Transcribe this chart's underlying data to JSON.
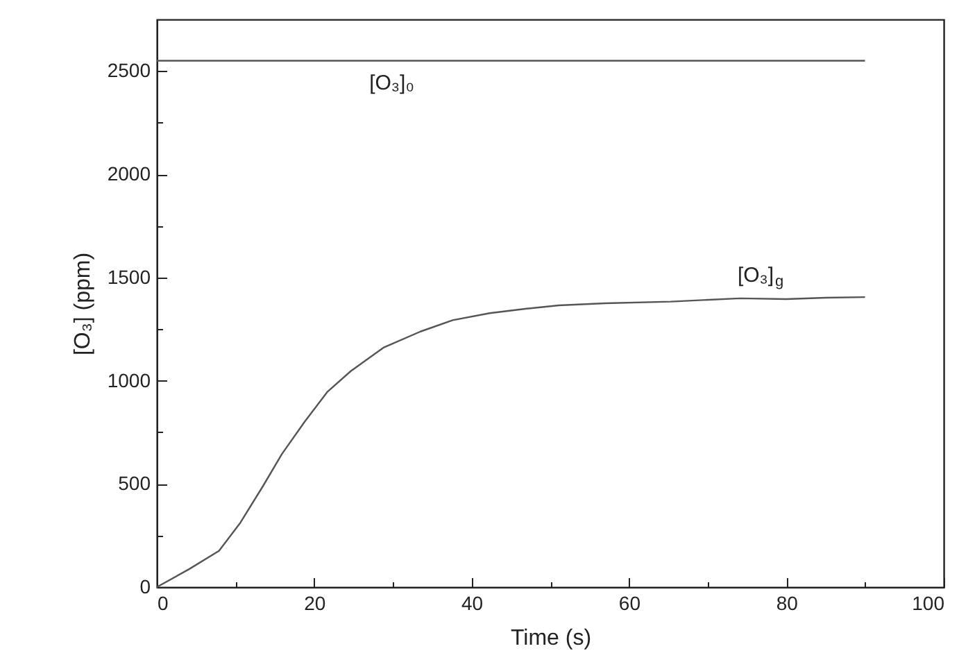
{
  "chart_data": {
    "type": "line",
    "xlabel": "Time (s)",
    "ylabel": "[O₃] (ppm)",
    "xlim": [
      0,
      100
    ],
    "ylim": [
      0,
      2750
    ],
    "xticks": [
      0,
      {
        "value": 10,
        "label": null
      },
      20,
      {
        "value": 30,
        "label": null
      },
      40,
      {
        "value": 50,
        "label": null
      },
      60,
      {
        "value": 70,
        "label": null
      },
      80,
      {
        "value": 90,
        "label": null
      },
      100
    ],
    "yticks": [
      0,
      {
        "value": 250,
        "label": null
      },
      500,
      {
        "value": 750,
        "label": null
      },
      1000,
      {
        "value": 1250,
        "label": null
      },
      1500,
      {
        "value": 1750,
        "label": null
      },
      2000,
      {
        "value": 2250,
        "label": null
      },
      2500
    ],
    "grid": false,
    "legend": false,
    "line_style": "solid",
    "marker": "none",
    "series": [
      {
        "name": "[O₃]₀",
        "color": "#555555",
        "x": [
          0,
          90
        ],
        "values": [
          2550,
          2550
        ]
      },
      {
        "name": "[O₃]$_{g}$",
        "color": "#555555",
        "x": [
          0,
          4.1,
          7.9,
          10.6,
          13.5,
          15.9,
          18.8,
          21.7,
          24.7,
          28.8,
          33.5,
          37.6,
          42.3,
          47,
          51.1,
          57,
          65.3,
          74.1,
          80,
          85,
          90
        ],
        "values": [
          0,
          87,
          176,
          311,
          490,
          645,
          802,
          947,
          1048,
          1160,
          1238,
          1293,
          1327,
          1349,
          1365,
          1375,
          1383,
          1399,
          1395,
          1402,
          1405
        ]
      }
    ]
  }
}
